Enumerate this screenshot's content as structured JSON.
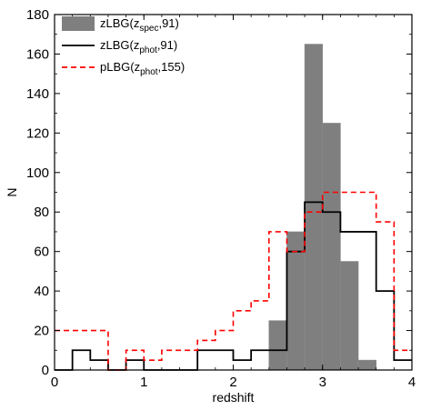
{
  "chart_data": {
    "type": "histogram",
    "xlabel": "redshift",
    "ylabel": "N",
    "xlim": [
      0,
      4
    ],
    "ylim": [
      0,
      180
    ],
    "xticks": [
      0,
      1,
      2,
      3,
      4
    ],
    "yticks": [
      0,
      20,
      40,
      60,
      80,
      100,
      120,
      140,
      160,
      180
    ],
    "bin_width": 0.2,
    "legend_position": "top-left",
    "series": [
      {
        "name": "zLBG(z_spec,91)",
        "legend": {
          "pre": "zLBG(z",
          "sub": "spec",
          "post": ",91)"
        },
        "style": "filled-bars",
        "color": "#7f7f7f",
        "bins": [
          {
            "x0": 2.4,
            "x1": 2.6,
            "value": 25
          },
          {
            "x0": 2.6,
            "x1": 2.8,
            "value": 70
          },
          {
            "x0": 2.8,
            "x1": 3.0,
            "value": 165
          },
          {
            "x0": 3.0,
            "x1": 3.2,
            "value": 125
          },
          {
            "x0": 3.2,
            "x1": 3.4,
            "value": 55
          },
          {
            "x0": 3.4,
            "x1": 3.6,
            "value": 5
          }
        ]
      },
      {
        "name": "zLBG(z_phot,91)",
        "legend": {
          "pre": "zLBG(z",
          "sub": "phot",
          "post": ",91)"
        },
        "style": "solid-step",
        "color": "#000000",
        "bins": [
          {
            "x0": 0.0,
            "x1": 0.2,
            "value": 0
          },
          {
            "x0": 0.2,
            "x1": 0.4,
            "value": 10
          },
          {
            "x0": 0.4,
            "x1": 0.6,
            "value": 5
          },
          {
            "x0": 0.6,
            "x1": 0.8,
            "value": 0
          },
          {
            "x0": 0.8,
            "x1": 1.0,
            "value": 5
          },
          {
            "x0": 1.0,
            "x1": 1.6,
            "value": 0
          },
          {
            "x0": 1.6,
            "x1": 2.0,
            "value": 10
          },
          {
            "x0": 2.0,
            "x1": 2.2,
            "value": 5
          },
          {
            "x0": 2.2,
            "x1": 2.6,
            "value": 10
          },
          {
            "x0": 2.6,
            "x1": 2.8,
            "value": 60
          },
          {
            "x0": 2.8,
            "x1": 3.0,
            "value": 85
          },
          {
            "x0": 3.0,
            "x1": 3.2,
            "value": 80
          },
          {
            "x0": 3.2,
            "x1": 3.6,
            "value": 70
          },
          {
            "x0": 3.6,
            "x1": 3.8,
            "value": 40
          },
          {
            "x0": 3.8,
            "x1": 4.0,
            "value": 5
          }
        ]
      },
      {
        "name": "pLBG(z_phot,155)",
        "legend": {
          "pre": "pLBG(z",
          "sub": "phot",
          "post": ",155)"
        },
        "style": "dashed-step",
        "color": "#ff0000",
        "bins": [
          {
            "x0": 0.0,
            "x1": 0.6,
            "value": 20
          },
          {
            "x0": 0.6,
            "x1": 0.8,
            "value": 0
          },
          {
            "x0": 0.8,
            "x1": 1.0,
            "value": 10
          },
          {
            "x0": 1.0,
            "x1": 1.2,
            "value": 5
          },
          {
            "x0": 1.2,
            "x1": 1.6,
            "value": 10
          },
          {
            "x0": 1.6,
            "x1": 1.8,
            "value": 15
          },
          {
            "x0": 1.8,
            "x1": 2.0,
            "value": 20
          },
          {
            "x0": 2.0,
            "x1": 2.2,
            "value": 30
          },
          {
            "x0": 2.2,
            "x1": 2.4,
            "value": 35
          },
          {
            "x0": 2.4,
            "x1": 2.6,
            "value": 70
          },
          {
            "x0": 2.6,
            "x1": 2.8,
            "value": 60
          },
          {
            "x0": 2.8,
            "x1": 3.0,
            "value": 80
          },
          {
            "x0": 3.0,
            "x1": 3.2,
            "value": 90
          },
          {
            "x0": 3.2,
            "x1": 3.6,
            "value": 90
          },
          {
            "x0": 3.6,
            "x1": 3.8,
            "value": 75
          },
          {
            "x0": 3.8,
            "x1": 4.0,
            "value": 10
          }
        ]
      }
    ]
  }
}
